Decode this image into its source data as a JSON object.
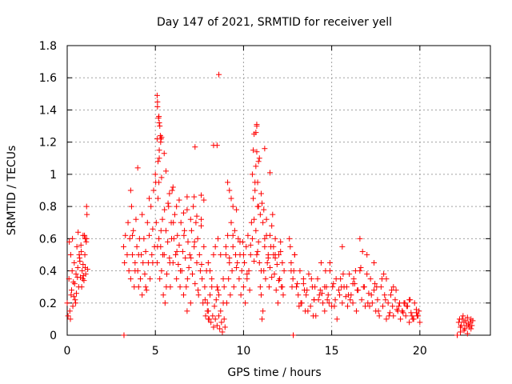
{
  "chart_data": {
    "type": "scatter",
    "title": "Day 147 of 2021, SRMTID for receiver yell",
    "xlabel": "GPS time / hours",
    "ylabel": "SRMTID / TECUs",
    "xlim": [
      0,
      24
    ],
    "ylim": [
      0,
      1.8
    ],
    "x_ticks": [
      0,
      5,
      10,
      15,
      20
    ],
    "x_tick_labels": [
      "0",
      "5",
      "10",
      "15",
      "20"
    ],
    "y_ticks": [
      0,
      0.2,
      0.4,
      0.6,
      0.8,
      1,
      1.2,
      1.4,
      1.6,
      1.8
    ],
    "y_tick_labels": [
      "0",
      "0.2",
      "0.4",
      "0.6",
      "0.8",
      "1",
      "1.2",
      "1.4",
      "1.6",
      "1.8"
    ],
    "grid": true,
    "marker": "+",
    "series_color": "#ff0000",
    "series": [
      {
        "name": "SRMTID",
        "x": [
          0.0,
          0.1,
          0.15,
          0.2,
          0.25,
          0.3,
          0.35,
          0.4,
          0.45,
          0.5,
          0.55,
          0.6,
          0.65,
          0.7,
          0.75,
          0.8,
          0.85,
          0.9,
          0.95,
          1.0,
          1.05,
          1.1,
          1.15,
          0.05,
          0.12,
          0.22,
          0.32,
          0.42,
          0.52,
          0.62,
          0.72,
          0.82,
          0.92,
          1.02,
          0.18,
          0.38,
          0.58,
          0.78,
          0.98,
          0.28,
          0.48,
          0.68,
          0.88,
          1.08,
          3.2,
          3.25,
          3.3,
          3.4,
          3.45,
          3.5,
          3.55,
          3.6,
          3.65,
          3.7,
          3.75,
          3.8,
          3.85,
          3.9,
          3.95,
          4.0,
          4.05,
          4.1,
          4.15,
          4.2,
          4.25,
          4.3,
          4.35,
          4.4,
          4.45,
          4.5,
          4.55,
          4.6,
          4.65,
          4.7,
          4.75,
          4.8,
          4.85,
          4.9,
          4.95,
          5.0,
          5.05,
          5.1,
          5.15,
          5.2,
          5.25,
          5.3,
          5.35,
          5.4,
          5.45,
          5.5,
          5.55,
          5.6,
          5.65,
          5.7,
          5.75,
          5.8,
          5.85,
          5.9,
          5.95,
          6.0,
          6.05,
          6.1,
          6.15,
          6.2,
          6.25,
          6.3,
          6.35,
          6.4,
          6.45,
          6.5,
          6.55,
          6.6,
          6.65,
          6.7,
          6.75,
          6.8,
          6.85,
          6.9,
          6.95,
          7.0,
          7.05,
          7.1,
          7.15,
          7.2,
          7.25,
          7.3,
          7.35,
          7.4,
          7.45,
          7.5,
          7.55,
          7.6,
          7.65,
          7.7,
          7.75,
          7.8,
          7.85,
          7.9,
          7.95,
          8.0,
          3.6,
          3.7,
          3.85,
          4.05,
          4.25,
          4.45,
          4.65,
          4.85,
          5.02,
          5.12,
          5.22,
          5.32,
          5.42,
          5.52,
          5.62,
          5.72,
          5.82,
          5.92,
          6.02,
          6.22,
          6.42,
          6.62,
          6.82,
          7.02,
          7.22,
          7.42,
          7.62,
          7.82,
          5.1,
          5.12,
          5.15,
          5.18,
          5.2,
          5.22,
          5.25,
          5.3,
          5.35,
          5.6,
          5.8,
          6.0,
          6.2,
          6.35,
          6.6,
          6.8,
          7.0,
          7.2,
          7.35,
          7.6,
          7.75,
          7.95,
          8.0,
          8.05,
          8.1,
          8.15,
          8.2,
          8.25,
          8.3,
          8.35,
          8.4,
          8.45,
          8.5,
          8.55,
          8.6,
          8.65,
          8.7,
          8.75,
          8.8,
          8.85,
          8.9,
          8.95,
          8.0,
          8.2,
          8.3,
          8.5,
          8.55,
          8.1,
          8.4,
          8.6,
          8.7,
          8.85,
          8.9,
          9.0,
          9.05,
          9.1,
          9.15,
          9.2,
          9.25,
          9.3,
          9.35,
          9.4,
          9.45,
          9.5,
          9.55,
          9.6,
          9.65,
          9.7,
          9.75,
          9.8,
          9.85,
          9.9,
          9.95,
          10.0,
          10.05,
          10.1,
          10.15,
          10.2,
          10.25,
          10.3,
          10.35,
          10.4,
          10.45,
          10.5,
          10.55,
          10.6,
          10.65,
          10.7,
          10.75,
          10.8,
          10.85,
          10.9,
          10.95,
          11.0,
          11.05,
          11.1,
          11.15,
          11.2,
          11.25,
          11.3,
          11.35,
          11.4,
          11.45,
          11.5,
          11.55,
          11.6,
          11.65,
          11.7,
          11.75,
          11.8,
          11.85,
          11.9,
          11.95,
          12.0,
          12.05,
          12.1,
          12.15,
          12.2,
          12.25,
          12.3,
          9.0,
          9.2,
          9.4,
          9.6,
          9.8,
          10.0,
          10.2,
          10.4,
          10.6,
          10.8,
          11.0,
          11.2,
          11.4,
          11.6,
          11.8,
          12.0,
          12.2,
          10.5,
          10.55,
          10.6,
          10.65,
          10.7,
          10.75,
          10.8,
          10.85,
          10.9,
          10.95,
          11.0,
          11.05,
          11.1,
          11.15,
          9.1,
          9.2,
          9.3,
          9.4,
          11.3,
          11.5,
          11.7,
          11.8,
          12.6,
          12.7,
          12.8,
          12.9,
          13.0,
          13.1,
          13.2,
          13.3,
          13.4,
          13.5,
          13.6,
          13.7,
          13.8,
          13.9,
          14.0,
          14.1,
          14.2,
          14.3,
          14.4,
          14.5,
          14.6,
          14.7,
          14.8,
          14.9,
          15.0,
          15.1,
          15.2,
          15.3,
          15.4,
          15.5,
          15.6,
          15.7,
          15.8,
          15.9,
          16.0,
          16.1,
          16.2,
          16.3,
          16.4,
          16.5,
          16.6,
          16.7,
          16.8,
          16.9,
          17.0,
          17.1,
          17.2,
          17.3,
          17.4,
          17.5,
          17.6,
          17.7,
          17.8,
          17.9,
          18.0,
          18.1,
          18.2,
          18.3,
          18.4,
          18.5,
          18.6,
          18.7,
          18.8,
          18.9,
          19.0,
          19.1,
          19.2,
          19.3,
          19.4,
          19.5,
          19.6,
          19.7,
          19.8,
          19.9,
          20.0,
          12.65,
          12.85,
          13.05,
          13.25,
          13.45,
          13.65,
          13.85,
          14.05,
          14.25,
          14.45,
          14.65,
          14.85,
          15.05,
          15.25,
          15.45,
          15.65,
          15.85,
          16.05,
          16.25,
          16.45,
          16.65,
          16.85,
          17.05,
          17.25,
          17.45,
          17.65,
          17.85,
          18.05,
          18.25,
          18.45,
          18.65,
          18.85,
          19.05,
          19.25,
          19.45,
          19.65,
          19.85,
          12.75,
          13.15,
          13.55,
          13.95,
          14.35,
          14.75,
          15.15,
          15.55,
          15.95,
          16.35,
          16.75,
          17.15,
          17.55,
          17.95,
          18.35,
          18.75,
          19.15,
          19.55,
          19.95,
          12.7,
          12.9,
          13.4,
          14.0,
          14.6,
          14.9,
          15.6,
          16.2,
          16.6,
          17.0,
          17.4,
          18.1,
          18.5,
          19.0,
          19.4,
          19.8,
          22.2,
          22.25,
          22.3,
          22.35,
          22.4,
          22.45,
          22.5,
          22.55,
          22.6,
          22.65,
          22.7,
          22.75,
          22.8,
          22.85,
          22.9,
          22.95,
          23.0,
          22.3,
          22.5,
          22.7,
          22.9,
          1.1,
          1.12,
          0.9,
          1.02,
          3.22,
          3.22,
          12.82,
          12.82,
          22.12,
          22.12,
          5.1,
          5.12,
          5.2,
          5.22,
          5.28,
          5.32,
          8.6,
          10.7,
          10.75,
          7.25,
          8.3,
          8.5,
          7.6,
          6.8,
          4.0,
          5.35,
          5.5,
          11.2,
          11.5,
          12.1,
          10.75,
          10.85
        ],
        "y": [
          0.2,
          0.35,
          0.15,
          0.5,
          0.28,
          0.6,
          0.33,
          0.45,
          0.22,
          0.38,
          0.55,
          0.42,
          0.3,
          0.48,
          0.36,
          0.52,
          0.4,
          0.44,
          0.34,
          0.5,
          0.38,
          0.6,
          0.41,
          0.12,
          0.58,
          0.25,
          0.18,
          0.32,
          0.26,
          0.64,
          0.46,
          0.3,
          0.37,
          0.42,
          0.1,
          0.24,
          0.36,
          0.56,
          0.62,
          0.4,
          0.2,
          0.5,
          0.35,
          0.58,
          0.55,
          0.45,
          0.62,
          0.5,
          0.7,
          0.4,
          0.6,
          0.35,
          0.8,
          0.5,
          0.65,
          0.3,
          0.45,
          0.72,
          0.55,
          0.4,
          0.3,
          0.6,
          0.35,
          0.5,
          0.25,
          0.45,
          0.6,
          0.38,
          0.52,
          0.28,
          0.7,
          0.45,
          0.62,
          0.35,
          0.8,
          0.5,
          0.66,
          0.9,
          0.55,
          1.0,
          0.7,
          0.45,
          0.85,
          0.6,
          0.35,
          0.55,
          0.4,
          0.72,
          0.25,
          0.5,
          0.2,
          0.65,
          0.38,
          0.58,
          0.8,
          0.48,
          0.3,
          0.7,
          0.9,
          0.45,
          0.6,
          0.75,
          0.5,
          0.35,
          0.62,
          0.44,
          0.56,
          0.3,
          0.7,
          0.4,
          0.52,
          0.25,
          0.65,
          0.48,
          0.3,
          0.15,
          0.58,
          0.42,
          0.5,
          0.2,
          0.65,
          0.38,
          0.8,
          0.55,
          0.32,
          0.7,
          0.45,
          0.6,
          0.25,
          0.5,
          0.4,
          0.72,
          0.35,
          0.2,
          0.55,
          0.3,
          0.12,
          0.4,
          0.15,
          0.1,
          0.9,
          0.62,
          0.4,
          0.5,
          0.75,
          0.3,
          0.85,
          0.45,
          0.95,
          0.55,
          1.1,
          0.65,
          0.5,
          0.78,
          0.3,
          0.82,
          0.45,
          0.6,
          0.7,
          0.52,
          0.4,
          0.62,
          0.35,
          0.48,
          0.58,
          0.28,
          0.44,
          0.22,
          1.22,
          1.45,
          1.08,
          1.35,
          0.95,
          1.15,
          1.3,
          1.2,
          0.98,
          1.02,
          0.88,
          0.92,
          0.8,
          0.84,
          0.76,
          0.78,
          0.72,
          0.86,
          0.74,
          0.68,
          0.84,
          0.2,
          0.15,
          0.1,
          0.25,
          0.08,
          0.3,
          0.12,
          0.05,
          0.18,
          0.1,
          0.22,
          0.06,
          0.28,
          0.12,
          0.04,
          0.15,
          0.08,
          0.02,
          0.2,
          0.1,
          0.05,
          0.45,
          0.35,
          0.5,
          0.3,
          0.6,
          0.4,
          0.55,
          0.25,
          0.5,
          0.35,
          0.3,
          0.5,
          0.2,
          0.62,
          0.35,
          0.45,
          0.25,
          0.7,
          0.4,
          0.55,
          0.3,
          0.65,
          0.5,
          0.78,
          0.45,
          0.6,
          0.35,
          0.5,
          0.25,
          0.4,
          0.58,
          0.3,
          0.45,
          0.2,
          0.55,
          0.35,
          0.62,
          0.4,
          0.28,
          0.5,
          0.7,
          0.6,
          0.85,
          0.72,
          0.95,
          0.65,
          0.5,
          0.8,
          0.58,
          0.45,
          0.3,
          0.25,
          0.1,
          0.15,
          0.4,
          0.55,
          0.35,
          0.62,
          0.45,
          0.5,
          0.3,
          0.42,
          0.55,
          0.68,
          0.75,
          0.5,
          0.38,
          0.6,
          0.28,
          0.44,
          0.2,
          0.5,
          0.35,
          0.58,
          0.3,
          0.45,
          0.25,
          0.4,
          0.55,
          0.48,
          0.62,
          0.42,
          0.58,
          0.5,
          0.38,
          0.56,
          0.46,
          0.52,
          0.4,
          0.6,
          0.48,
          0.36,
          0.5,
          0.34,
          0.3,
          1.0,
          1.15,
          1.25,
          0.9,
          1.05,
          1.3,
          0.95,
          0.8,
          1.1,
          0.75,
          0.88,
          0.82,
          0.7,
          0.78,
          0.95,
          0.9,
          0.85,
          0.8,
          0.72,
          0.62,
          0.55,
          0.48,
          0.6,
          0.45,
          0.35,
          0.5,
          0.3,
          0.25,
          0.4,
          0.2,
          0.32,
          0.15,
          0.28,
          0.38,
          0.18,
          0.3,
          0.22,
          0.12,
          0.35,
          0.25,
          0.45,
          0.2,
          0.15,
          0.3,
          0.25,
          0.4,
          0.18,
          0.32,
          0.22,
          0.1,
          0.28,
          0.35,
          0.2,
          0.3,
          0.24,
          0.18,
          0.38,
          0.25,
          0.2,
          0.32,
          0.15,
          0.28,
          0.4,
          0.22,
          0.3,
          0.18,
          0.5,
          0.26,
          0.35,
          0.2,
          0.28,
          0.15,
          0.22,
          0.12,
          0.3,
          0.18,
          0.25,
          0.1,
          0.2,
          0.14,
          0.28,
          0.12,
          0.22,
          0.16,
          0.18,
          0.1,
          0.15,
          0.2,
          0.12,
          0.18,
          0.08,
          0.14,
          0.1,
          0.2,
          0.16,
          0.12,
          0.08,
          0.55,
          0.4,
          0.32,
          0.2,
          0.28,
          0.15,
          0.35,
          0.3,
          0.22,
          0.26,
          0.4,
          0.2,
          0.3,
          0.35,
          0.25,
          0.38,
          0.3,
          0.22,
          0.35,
          0.28,
          0.42,
          0.3,
          0.2,
          0.25,
          0.32,
          0.15,
          0.35,
          0.22,
          0.12,
          0.18,
          0.28,
          0.2,
          0.14,
          0.18,
          0.22,
          0.1,
          0.12,
          0.3,
          0.18,
          0.25,
          0.12,
          0.28,
          0.22,
          0.18,
          0.3,
          0.25,
          0.4,
          0.52,
          0.18,
          0.3,
          0.38,
          0.25,
          0.15,
          0.2,
          0.12,
          0.15,
          0.4,
          0.5,
          0.35,
          0.22,
          0.3,
          0.45,
          0.55,
          0.32,
          0.6,
          0.38,
          0.45,
          0.35,
          0.3,
          0.15,
          0.22,
          0.14,
          0.08,
          0.1,
          0.05,
          0.06,
          0.1,
          0.12,
          0.08,
          0.04,
          0.09,
          0.06,
          0.11,
          0.07,
          0.05,
          0.08,
          0.1,
          0.06,
          0.09,
          0.02,
          0.03,
          0.01,
          0.04,
          0.8,
          0.75,
          0.62,
          0.6,
          0.0,
          0.0,
          0.0,
          0.0,
          0.0,
          0.0,
          1.49,
          1.42,
          1.36,
          1.32,
          1.24,
          1.22,
          1.62,
          1.26,
          1.31,
          1.17,
          1.18,
          1.18,
          0.87,
          0.86,
          1.04,
          1.23,
          1.13,
          1.16,
          1.01,
          0.52,
          1.14,
          1.08
        ]
      }
    ]
  }
}
